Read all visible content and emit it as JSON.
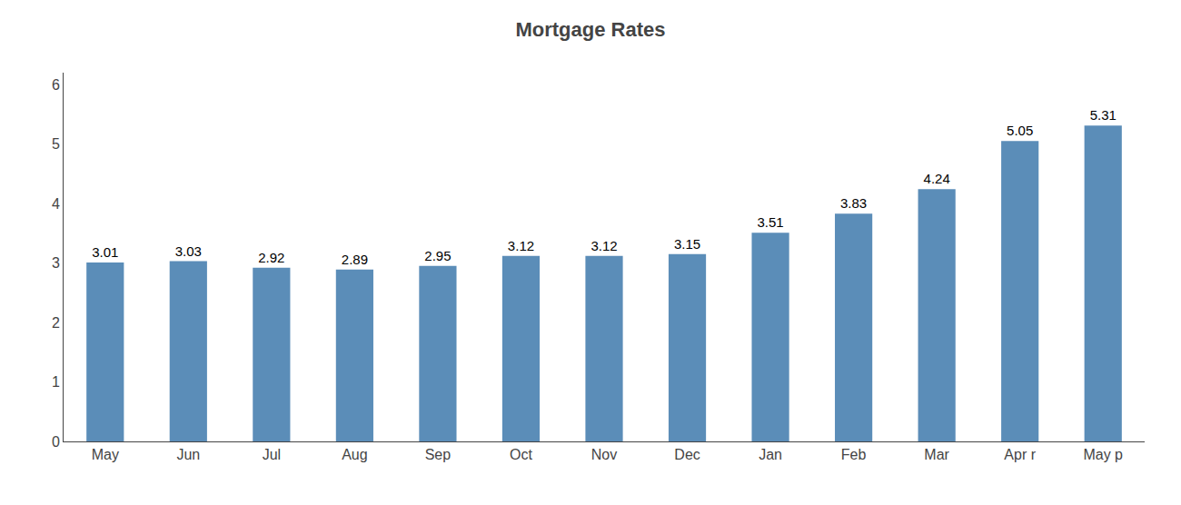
{
  "chart_data": {
    "type": "bar",
    "title": "Mortgage Rates",
    "categories": [
      "May",
      "Jun",
      "Jul",
      "Aug",
      "Sep",
      "Oct",
      "Nov",
      "Dec",
      "Jan",
      "Feb",
      "Mar",
      "Apr r",
      "May p"
    ],
    "values": [
      3.01,
      3.03,
      2.92,
      2.89,
      2.95,
      3.12,
      3.12,
      3.15,
      3.51,
      3.83,
      4.24,
      5.05,
      5.31
    ],
    "color": "#5b8db8",
    "ylim": [
      0,
      6.2
    ],
    "yticks": [
      0,
      1,
      2,
      3,
      4,
      5,
      6
    ],
    "grid": false,
    "data_labels": true
  }
}
